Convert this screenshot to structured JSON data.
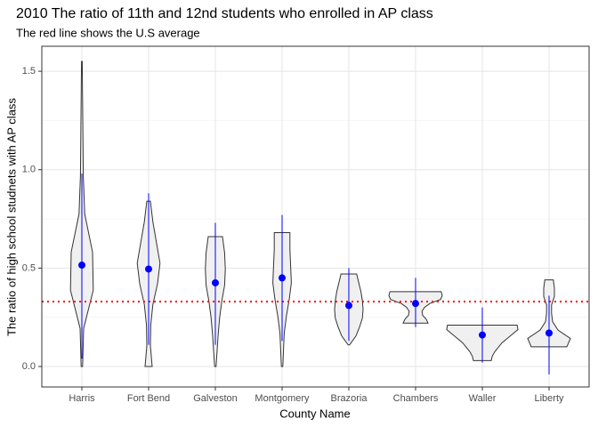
{
  "chart_data": {
    "type": "violin",
    "title": "2010 The ratio of 11th and 12nd students who enrolled in AP class",
    "subtitle": "The red line shows the U.S average",
    "x_label": "County Name",
    "y_label": "The ratio of high school studnets with AP class",
    "categories": [
      "Harris",
      "Fort Bend",
      "Galveston",
      "Montgomery",
      "Brazoria",
      "Chambers",
      "Waller",
      "Liberty"
    ],
    "min": [
      0,
      0,
      0,
      0,
      0.11,
      0.22,
      0.03,
      0.1
    ],
    "max": [
      1.55,
      0.84,
      0.66,
      0.68,
      0.47,
      0.38,
      0.21,
      0.44
    ],
    "densities": [
      [
        0.02,
        0.05,
        0.32,
        0.3,
        0.08,
        0.04,
        0.03,
        0.02,
        0.01
      ],
      [
        0.1,
        0.05,
        0.06,
        0.12,
        0.25,
        0.32,
        0.22,
        0.12,
        0.05
      ],
      [
        0.02,
        0.05,
        0.08,
        0.12,
        0.18,
        0.26,
        0.28,
        0.26,
        0.2
      ],
      [
        0.02,
        0.04,
        0.06,
        0.12,
        0.2,
        0.26,
        0.24,
        0.22,
        0.22
      ],
      [
        0.02,
        0.2,
        0.3,
        0.38,
        0.4,
        0.38,
        0.34,
        0.28,
        0.22
      ],
      [
        0.35,
        0.3,
        0.2,
        0.18,
        0.25,
        0.4,
        0.7,
        0.75,
        0.72
      ],
      [
        0.25,
        0.28,
        0.35,
        0.45,
        0.55,
        0.7,
        0.85,
        1.0,
        0.98
      ],
      [
        0.5,
        0.6,
        0.25,
        0.1,
        0.07,
        0.07,
        0.15,
        0.15,
        0.12
      ]
    ],
    "mean": [
      0.515,
      0.495,
      0.425,
      0.45,
      0.31,
      0.32,
      0.16,
      0.17
    ],
    "error_low": [
      0.04,
      0.11,
      0.11,
      0.13,
      0.13,
      0.2,
      0.02,
      -0.04
    ],
    "error_high": [
      0.98,
      0.88,
      0.73,
      0.77,
      0.5,
      0.45,
      0.3,
      0.36
    ],
    "reference_line": 0.33,
    "violin_color": "#f0f0f0",
    "mean_color": "#0000ff",
    "reference_color": "#ff0000",
    "ylim": [
      -0.104,
      1.627
    ],
    "yticks": [
      {
        "value": 0,
        "label": "0.0"
      },
      {
        "value": 0.5,
        "label": "0.5"
      },
      {
        "value": 1,
        "label": "1.0"
      },
      {
        "value": 1.5,
        "label": "1.5"
      }
    ],
    "grid": true
  }
}
